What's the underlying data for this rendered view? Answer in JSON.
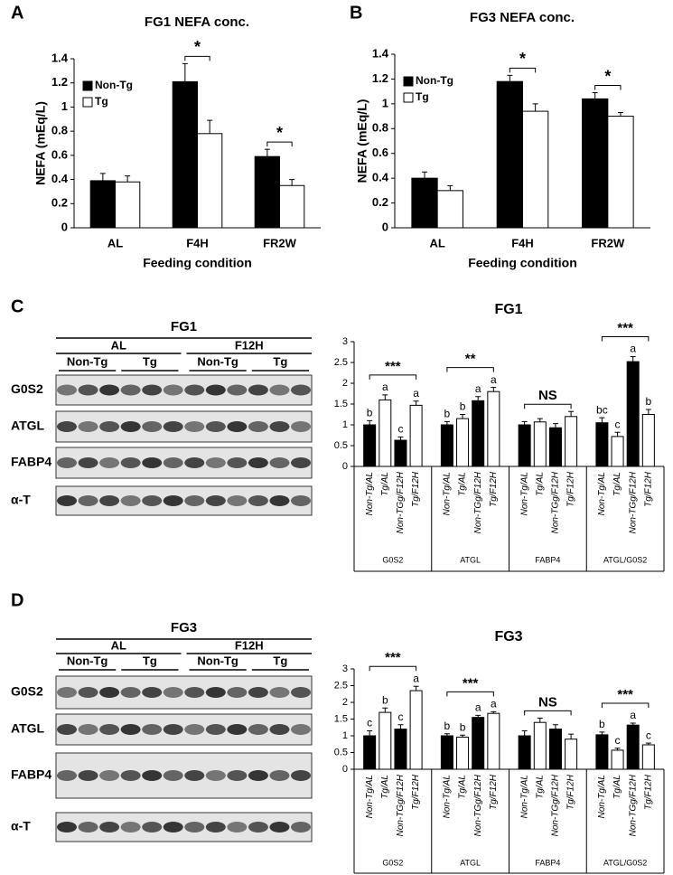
{
  "panels": [
    "A",
    "B",
    "C",
    "D"
  ],
  "chart_data": [
    {
      "type": "bar",
      "title": "FG1 NEFA conc.",
      "x_label": "Feeding condition",
      "y_label": "NEFA (mEq/L)",
      "categories": [
        "AL",
        "F4H",
        "FR2W"
      ],
      "series": [
        {
          "name": "Non-Tg",
          "color": "#000000",
          "values": [
            0.39,
            1.21,
            0.59
          ],
          "errors": [
            0.06,
            0.15,
            0.06
          ]
        },
        {
          "name": "Tg",
          "color": "#ffffff",
          "values": [
            0.38,
            0.78,
            0.35
          ],
          "errors": [
            0.05,
            0.11,
            0.05
          ]
        }
      ],
      "significance": [
        null,
        "*",
        "*"
      ],
      "ylim": [
        0,
        1.4
      ],
      "yticks": [
        0,
        0.2,
        0.4,
        0.6,
        0.8,
        1,
        1.2,
        1.4
      ],
      "legend": "upper left"
    },
    {
      "type": "bar",
      "title": "FG3 NEFA conc.",
      "x_label": "Feeding condition",
      "y_label": "NEFA (mEq/L)",
      "categories": [
        "AL",
        "F4H",
        "FR2W"
      ],
      "series": [
        {
          "name": "Non-Tg",
          "color": "#000000",
          "values": [
            0.4,
            1.18,
            1.04
          ],
          "errors": [
            0.05,
            0.05,
            0.05
          ]
        },
        {
          "name": "Tg",
          "color": "#ffffff",
          "values": [
            0.3,
            0.94,
            0.9
          ],
          "errors": [
            0.04,
            0.06,
            0.03
          ]
        }
      ],
      "significance": [
        null,
        "*",
        "*"
      ],
      "ylim": [
        0,
        1.4
      ],
      "yticks": [
        0,
        0.2,
        0.4,
        0.6,
        0.8,
        1,
        1.2,
        1.4
      ],
      "legend": "upper left"
    },
    {
      "type": "bar",
      "title": "FG1",
      "categories": [
        "G0S2",
        "ATGL",
        "FABP4",
        "ATGL/G0S2"
      ],
      "series": [
        {
          "name": "Non-Tg/AL",
          "color": "#000000",
          "values": [
            1.0,
            1.0,
            1.0,
            1.05
          ],
          "errors": [
            0.1,
            0.08,
            0.08,
            0.12
          ],
          "letters": [
            "b",
            "b",
            null,
            "bc"
          ]
        },
        {
          "name": "Tg/AL",
          "color": "#ffffff",
          "values": [
            1.6,
            1.15,
            1.07,
            0.72
          ],
          "errors": [
            0.12,
            0.1,
            0.08,
            0.1
          ],
          "letters": [
            "a",
            "b",
            null,
            "c"
          ]
        },
        {
          "name": "Non-TGg/F12H",
          "color": "#000000",
          "values": [
            0.63,
            1.58,
            0.93,
            2.52
          ],
          "errors": [
            0.08,
            0.1,
            0.1,
            0.12
          ],
          "letters": [
            "c",
            "a",
            null,
            "a"
          ]
        },
        {
          "name": "Tg/F12H",
          "color": "#ffffff",
          "values": [
            1.47,
            1.8,
            1.2,
            1.25
          ],
          "errors": [
            0.1,
            0.1,
            0.12,
            0.12
          ],
          "letters": [
            "a",
            "a",
            null,
            "b"
          ]
        }
      ],
      "significance": [
        "***",
        "**",
        "NS",
        "***"
      ],
      "ylim": [
        0,
        3
      ],
      "yticks": [
        0,
        0.5,
        1,
        1.5,
        2,
        2.5,
        3
      ]
    },
    {
      "type": "bar",
      "title": "FG3",
      "categories": [
        "G0S2",
        "ATGL",
        "FABP4",
        "ATGL/G0S2"
      ],
      "series": [
        {
          "name": "Non-Tg/AL",
          "color": "#000000",
          "values": [
            1.0,
            1.0,
            1.0,
            1.03
          ],
          "errors": [
            0.15,
            0.06,
            0.15,
            0.08
          ],
          "letters": [
            "c",
            "b",
            null,
            "b"
          ]
        },
        {
          "name": "Tg/AL",
          "color": "#ffffff",
          "values": [
            1.7,
            0.96,
            1.4,
            0.57
          ],
          "errors": [
            0.13,
            0.06,
            0.13,
            0.06
          ],
          "letters": [
            "b",
            "b",
            null,
            "c"
          ]
        },
        {
          "name": "Non-TGg/F12H",
          "color": "#000000",
          "values": [
            1.2,
            1.55,
            1.2,
            1.32
          ],
          "errors": [
            0.13,
            0.06,
            0.13,
            0.06
          ],
          "letters": [
            "c",
            "a",
            null,
            "a"
          ]
        },
        {
          "name": "Tg/F12H",
          "color": "#ffffff",
          "values": [
            2.35,
            1.67,
            0.9,
            0.73
          ],
          "errors": [
            0.13,
            0.05,
            0.15,
            0.05
          ],
          "letters": [
            "a",
            "a",
            null,
            "c"
          ]
        }
      ],
      "significance": [
        "***",
        "***",
        "NS",
        "***"
      ],
      "ylim": [
        0,
        3
      ],
      "yticks": [
        0,
        0.5,
        1,
        1.5,
        2,
        2.5,
        3
      ]
    }
  ],
  "blots": [
    {
      "title": "FG1",
      "groups": [
        {
          "label": "AL",
          "subgroups": [
            "Non-Tg",
            "Tg"
          ]
        },
        {
          "label": "F12H",
          "subgroups": [
            "Non-Tg",
            "Tg"
          ]
        }
      ],
      "rows": [
        "G0S2",
        "ATGL",
        "FABP4",
        "α-T"
      ]
    },
    {
      "title": "FG3",
      "groups": [
        {
          "label": "AL",
          "subgroups": [
            "Non-Tg",
            "Tg"
          ]
        },
        {
          "label": "F12H",
          "subgroups": [
            "Non-Tg",
            "Tg"
          ]
        }
      ],
      "rows": [
        "G0S2",
        "ATGL",
        "FABP4",
        "α-T"
      ]
    }
  ]
}
